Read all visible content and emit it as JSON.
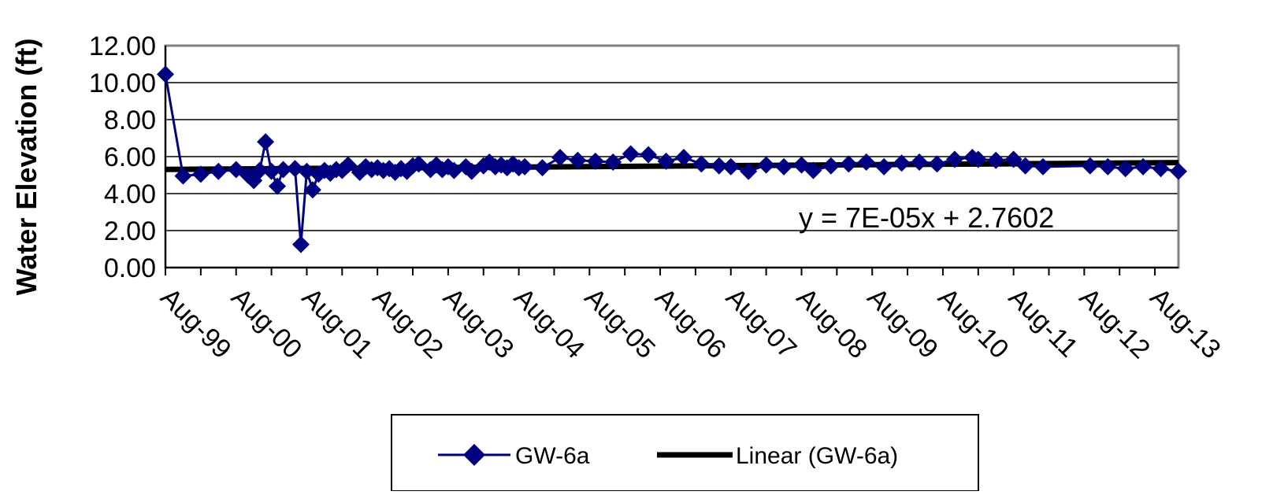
{
  "chart_data": {
    "type": "line",
    "title": "",
    "xlabel": "",
    "ylabel": "Water Elevation (ft)",
    "ylim": [
      0,
      12
    ],
    "yticks": [
      "0.00",
      "2.00",
      "4.00",
      "6.00",
      "8.00",
      "10.00",
      "12.00"
    ],
    "xlim": [
      "1999-08",
      "2013-12"
    ],
    "x_tick_labels": [
      "Aug-99",
      "Aug-00",
      "Aug-01",
      "Aug-02",
      "Aug-03",
      "Aug-04",
      "Aug-05",
      "Aug-06",
      "Aug-07",
      "Aug-08",
      "Aug-09",
      "Aug-10",
      "Aug-11",
      "Aug-12",
      "Aug-13"
    ],
    "grid": "horizontal",
    "legend_position": "bottom",
    "series": [
      {
        "name": "GW-6a",
        "color": "#000080",
        "marker": "diamond",
        "points": [
          [
            "1999-08",
            10.45
          ],
          [
            "1999-11",
            4.95
          ],
          [
            "2000-02",
            5.05
          ],
          [
            "2000-05",
            5.2
          ],
          [
            "2000-08",
            5.3
          ],
          [
            "2000-10",
            5.0
          ],
          [
            "2000-11",
            4.7
          ],
          [
            "2000-12",
            5.25
          ],
          [
            "2001-01",
            6.8
          ],
          [
            "2001-02",
            5.2
          ],
          [
            "2001-03",
            4.4
          ],
          [
            "2001-04",
            5.3
          ],
          [
            "2001-06",
            5.35
          ],
          [
            "2001-07",
            1.25
          ],
          [
            "2001-08",
            5.2
          ],
          [
            "2001-09",
            4.2
          ],
          [
            "2001-10",
            5.05
          ],
          [
            "2001-11",
            5.25
          ],
          [
            "2001-12",
            5.1
          ],
          [
            "2002-01",
            5.3
          ],
          [
            "2002-02",
            5.25
          ],
          [
            "2002-03",
            5.55
          ],
          [
            "2002-05",
            5.15
          ],
          [
            "2002-06",
            5.45
          ],
          [
            "2002-07",
            5.3
          ],
          [
            "2002-08",
            5.4
          ],
          [
            "2002-09",
            5.25
          ],
          [
            "2002-10",
            5.35
          ],
          [
            "2002-11",
            5.15
          ],
          [
            "2002-12",
            5.35
          ],
          [
            "2003-01",
            5.2
          ],
          [
            "2003-02",
            5.5
          ],
          [
            "2003-03",
            5.6
          ],
          [
            "2003-05",
            5.3
          ],
          [
            "2003-06",
            5.55
          ],
          [
            "2003-07",
            5.3
          ],
          [
            "2003-08",
            5.45
          ],
          [
            "2003-09",
            5.25
          ],
          [
            "2003-11",
            5.45
          ],
          [
            "2003-12",
            5.2
          ],
          [
            "2004-02",
            5.5
          ],
          [
            "2004-03",
            5.7
          ],
          [
            "2004-04",
            5.45
          ],
          [
            "2004-05",
            5.55
          ],
          [
            "2004-06",
            5.4
          ],
          [
            "2004-07",
            5.6
          ],
          [
            "2004-08",
            5.4
          ],
          [
            "2004-09",
            5.45
          ],
          [
            "2004-12",
            5.4
          ],
          [
            "2005-03",
            5.95
          ],
          [
            "2005-06",
            5.8
          ],
          [
            "2005-09",
            5.75
          ],
          [
            "2005-12",
            5.7
          ],
          [
            "2006-03",
            6.15
          ],
          [
            "2006-06",
            6.1
          ],
          [
            "2006-09",
            5.75
          ],
          [
            "2006-12",
            5.95
          ],
          [
            "2007-03",
            5.6
          ],
          [
            "2007-06",
            5.5
          ],
          [
            "2007-08",
            5.45
          ],
          [
            "2007-11",
            5.2
          ],
          [
            "2008-02",
            5.55
          ],
          [
            "2008-05",
            5.45
          ],
          [
            "2008-08",
            5.55
          ],
          [
            "2008-10",
            5.25
          ],
          [
            "2009-01",
            5.5
          ],
          [
            "2009-04",
            5.6
          ],
          [
            "2009-07",
            5.7
          ],
          [
            "2009-10",
            5.45
          ],
          [
            "2010-01",
            5.65
          ],
          [
            "2010-04",
            5.7
          ],
          [
            "2010-07",
            5.6
          ],
          [
            "2010-10",
            5.85
          ],
          [
            "2011-01",
            5.95
          ],
          [
            "2011-02",
            5.85
          ],
          [
            "2011-05",
            5.8
          ],
          [
            "2011-08",
            5.85
          ],
          [
            "2011-10",
            5.5
          ],
          [
            "2012-01",
            5.45
          ],
          [
            "2012-09",
            5.5
          ],
          [
            "2012-12",
            5.45
          ],
          [
            "2013-03",
            5.35
          ],
          [
            "2013-06",
            5.45
          ],
          [
            "2013-09",
            5.35
          ],
          [
            "2013-12",
            5.2
          ]
        ]
      }
    ],
    "trendline": {
      "name": "Linear (GW-6a)",
      "color": "#000000",
      "equation": "y = 7E-05x + 2.7602",
      "slope": 7e-05,
      "intercept": 2.7602
    }
  }
}
